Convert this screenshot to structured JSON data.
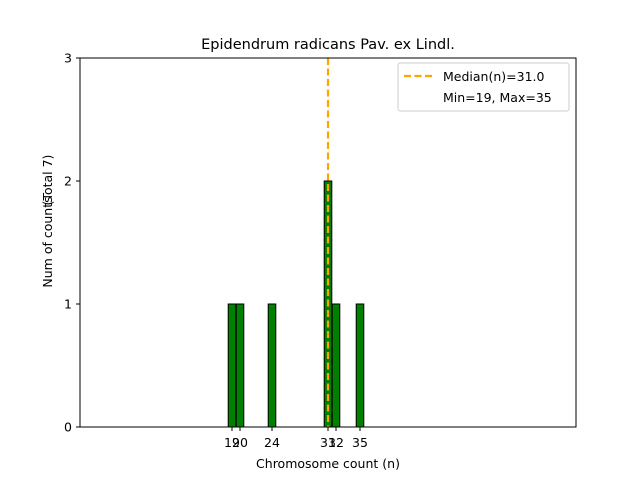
{
  "chart_data": {
    "type": "bar",
    "title": "Epidendrum radicans Pav. ex Lindl.",
    "xlabel": "Chromosome count (n)",
    "ylabel": "Num of counts",
    "ylabel_total": "(Total 7)",
    "xlim": [
      0,
      62
    ],
    "ylim": [
      0,
      3
    ],
    "yticks": [
      0,
      1,
      2,
      3
    ],
    "xticks": [
      19,
      20,
      24,
      31,
      32,
      35
    ],
    "bars": [
      {
        "x": 19,
        "count": 1
      },
      {
        "x": 20,
        "count": 1
      },
      {
        "x": 24,
        "count": 1
      },
      {
        "x": 31,
        "count": 2
      },
      {
        "x": 32,
        "count": 1
      },
      {
        "x": 35,
        "count": 1
      }
    ],
    "bar_color": "#008000",
    "median": 31.0,
    "median_color": "#ffa500",
    "legend": {
      "placement": "top-right",
      "median_label": "Median(n)=31.0",
      "range_label": "Min=19, Max=35"
    },
    "grid": false
  }
}
